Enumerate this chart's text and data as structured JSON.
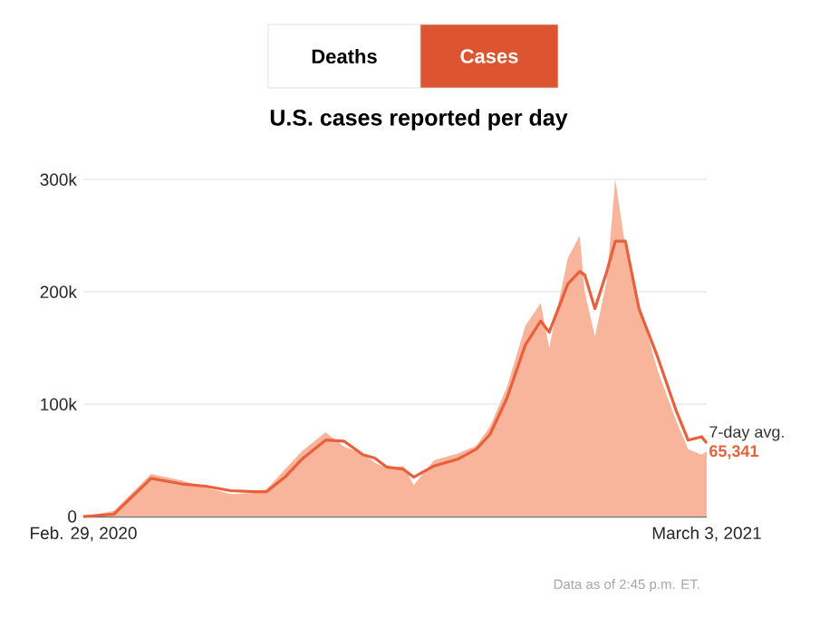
{
  "chart_data": {
    "type": "line",
    "title": "U.S. cases reported per day",
    "annotations": [
      "Deaths",
      "Cases",
      "Data as of 2:45 p.m. ET."
    ],
    "xlim": [
      "2020-02-29",
      "2021-03-03"
    ],
    "xticks": [
      {
        "value": "2020-02-29",
        "label": "Feb. 29, 2020"
      },
      {
        "value": "2021-03-03",
        "label": "March 3, 2021"
      }
    ],
    "ylim": [
      0,
      300000
    ],
    "yticks": [
      {
        "value": 0,
        "label": "0"
      },
      {
        "value": 100000,
        "label": "100k"
      },
      {
        "value": 200000,
        "label": "200k"
      },
      {
        "value": 300000,
        "label": "300k"
      }
    ],
    "grid": "y",
    "legend": false,
    "series": [
      {
        "type": "area",
        "color": "#f9b59c",
        "x": [
          "2020-02-29",
          "2020-03-18",
          "2020-04-09",
          "2020-04-27",
          "2020-05-11",
          "2020-05-26",
          "2020-06-09",
          "2020-06-16",
          "2020-06-27",
          "2020-07-07",
          "2020-07-21",
          "2020-08-01",
          "2020-08-12",
          "2020-08-19",
          "2020-08-26",
          "2020-09-05",
          "2020-09-11",
          "2020-09-23",
          "2020-10-07",
          "2020-10-18",
          "2020-10-26",
          "2020-11-05",
          "2020-11-16",
          "2020-11-25",
          "2020-11-30",
          "2020-12-11",
          "2020-12-18",
          "2020-12-21",
          "2020-12-27",
          "2021-01-03",
          "2021-01-08",
          "2021-01-14",
          "2021-01-22",
          "2021-02-02",
          "2021-02-13",
          "2021-02-20",
          "2021-02-28",
          "2021-03-03"
        ],
        "values": [
          0,
          5000,
          38000,
          32000,
          26000,
          20000,
          21000,
          24000,
          42000,
          58000,
          75000,
          62000,
          56000,
          48000,
          43000,
          45000,
          28000,
          50000,
          56000,
          63000,
          80000,
          115000,
          170000,
          190000,
          150000,
          230000,
          250000,
          200000,
          160000,
          210000,
          300000,
          240000,
          190000,
          130000,
          85000,
          60000,
          55000,
          58000
        ]
      },
      {
        "name": "7-day avg.",
        "color": "#e8603c",
        "x": [
          "2020-02-29",
          "2020-03-18",
          "2020-04-09",
          "2020-04-27",
          "2020-05-11",
          "2020-05-26",
          "2020-06-09",
          "2020-06-16",
          "2020-06-27",
          "2020-07-07",
          "2020-07-21",
          "2020-08-01",
          "2020-08-12",
          "2020-08-19",
          "2020-08-26",
          "2020-09-05",
          "2020-09-11",
          "2020-09-23",
          "2020-10-07",
          "2020-10-18",
          "2020-10-26",
          "2020-11-05",
          "2020-11-16",
          "2020-11-25",
          "2020-11-30",
          "2020-12-11",
          "2020-12-18",
          "2020-12-21",
          "2020-12-27",
          "2021-01-03",
          "2021-01-08",
          "2021-01-14",
          "2021-01-22",
          "2021-02-02",
          "2021-02-13",
          "2021-02-20",
          "2021-02-28",
          "2021-03-03"
        ],
        "values": [
          0,
          2000,
          34000,
          29000,
          27000,
          23000,
          22000,
          22000,
          35000,
          51000,
          68000,
          67000,
          55000,
          52000,
          44000,
          42000,
          35000,
          45000,
          51000,
          60000,
          73000,
          105000,
          153000,
          174000,
          164000,
          207000,
          218000,
          215000,
          185000,
          218000,
          245000,
          245000,
          185000,
          142000,
          94000,
          68000,
          71000,
          65341
        ],
        "value_labels": [
          null,
          null,
          null,
          null,
          null,
          null,
          null,
          null,
          null,
          null,
          null,
          null,
          null,
          null,
          null,
          null,
          null,
          null,
          null,
          null,
          null,
          null,
          null,
          null,
          null,
          null,
          null,
          null,
          null,
          null,
          null,
          null,
          null,
          null,
          null,
          null,
          null,
          "65,341"
        ]
      }
    ]
  }
}
